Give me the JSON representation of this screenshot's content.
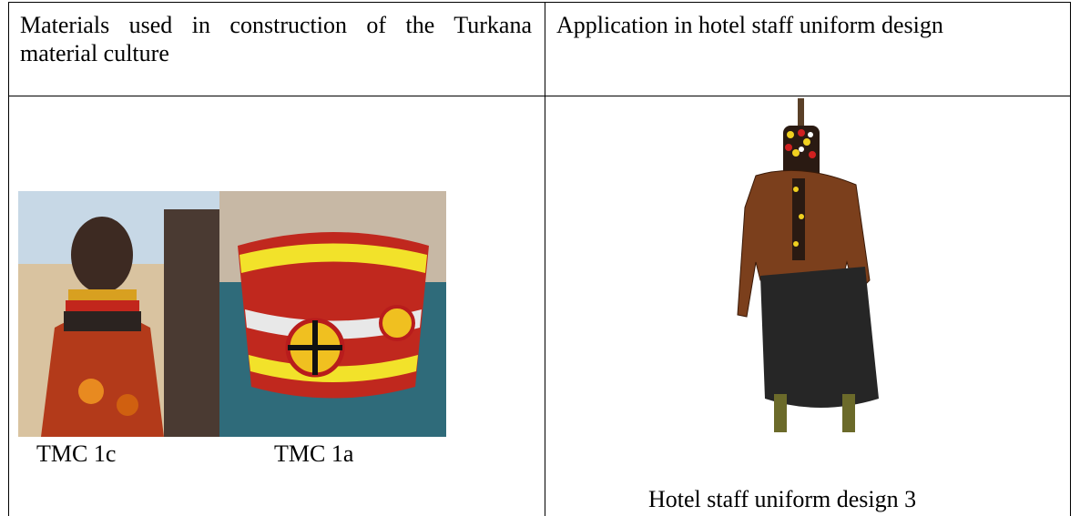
{
  "table": {
    "headers": [
      "Materials used in construction of the Turkana material culture",
      "Application in hotel staff uniform design"
    ],
    "left_captions": [
      "TMC 1c",
      "TMC 1a"
    ],
    "right_caption": "Hotel staff uniform design 3"
  }
}
